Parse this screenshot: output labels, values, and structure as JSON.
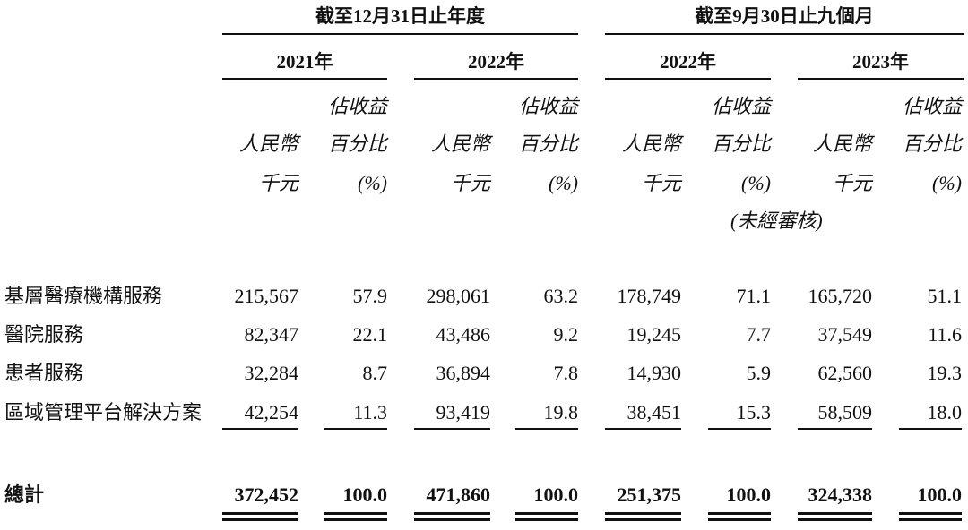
{
  "header": {
    "periods": [
      "截至12月31日止年度",
      "截至9月30日止九個月"
    ],
    "years": [
      "2021年",
      "2022年",
      "2022年",
      "2023年"
    ],
    "columns": [
      {
        "lines": [
          "人民幣",
          "千元"
        ]
      },
      {
        "lines": [
          "佔收益",
          "百分比",
          "(%)"
        ]
      },
      {
        "lines": [
          "人民幣",
          "千元"
        ]
      },
      {
        "lines": [
          "佔收益",
          "百分比",
          "(%)"
        ]
      },
      {
        "lines": [
          "人民幣",
          "千元"
        ]
      },
      {
        "lines": [
          "佔收益",
          "百分比",
          "(%)"
        ]
      },
      {
        "lines": [
          "人民幣",
          "千元"
        ]
      },
      {
        "lines": [
          "佔收益",
          "百分比",
          "(%)"
        ]
      }
    ],
    "note": "(未經審核)"
  },
  "table": {
    "rows": [
      {
        "label": "基層醫療機構服務",
        "cells": [
          "215,567",
          "57.9",
          "298,061",
          "63.2",
          "178,749",
          "71.1",
          "165,720",
          "51.1"
        ]
      },
      {
        "label": "醫院服務",
        "cells": [
          "82,347",
          "22.1",
          "43,486",
          "9.2",
          "19,245",
          "7.7",
          "37,549",
          "11.6"
        ]
      },
      {
        "label": "患者服務",
        "cells": [
          "32,284",
          "8.7",
          "36,894",
          "7.8",
          "14,930",
          "5.9",
          "62,560",
          "19.3"
        ]
      },
      {
        "label": "區域管理平台解決方案",
        "cells": [
          "42,254",
          "11.3",
          "93,419",
          "19.8",
          "38,451",
          "15.3",
          "58,509",
          "18.0"
        ]
      }
    ],
    "total": {
      "label": "總計",
      "cells": [
        "372,452",
        "100.0",
        "471,860",
        "100.0",
        "251,375",
        "100.0",
        "324,338",
        "100.0"
      ]
    }
  }
}
